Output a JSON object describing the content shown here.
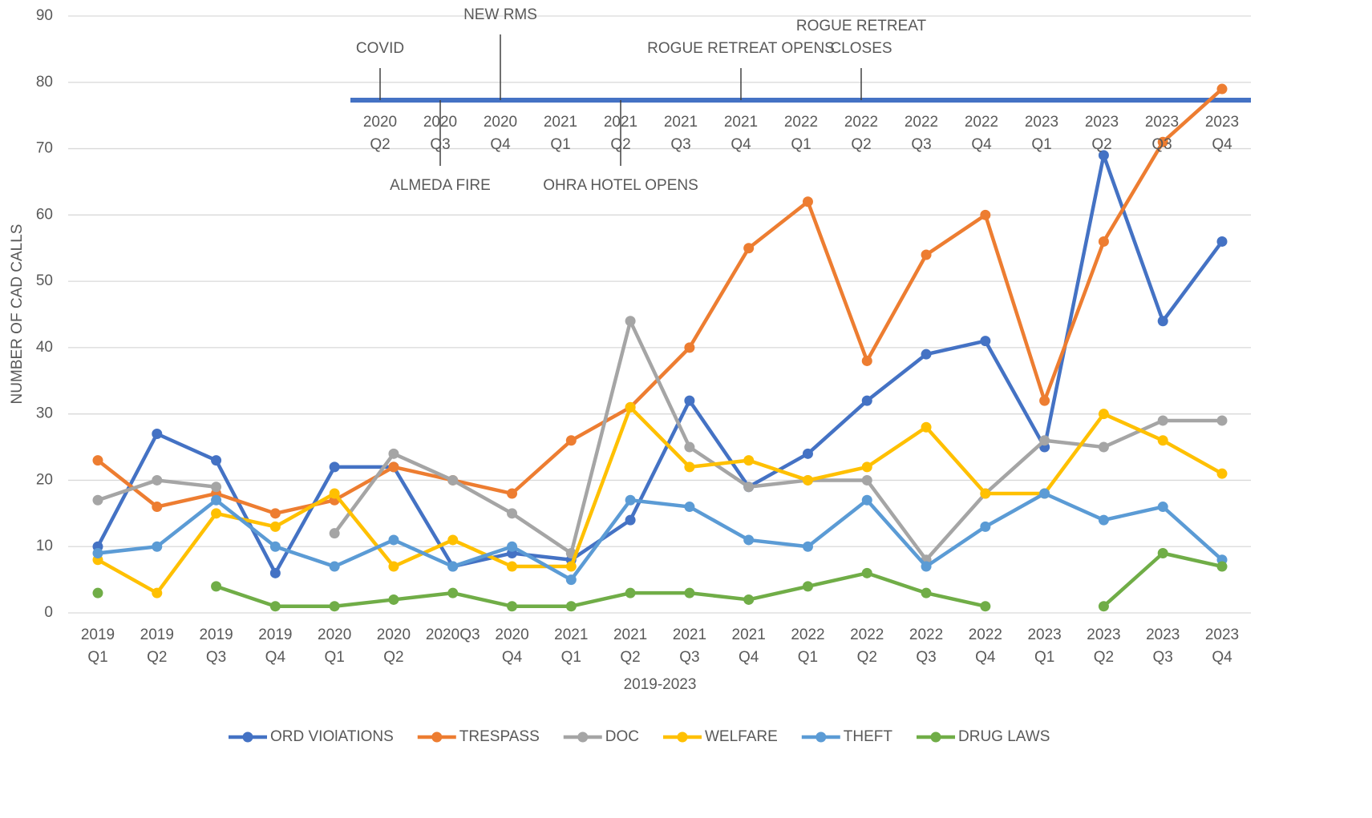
{
  "chart_data": {
    "type": "line",
    "x_label": "2019-2023",
    "y_label": "NUMBER OF CAD CALLS",
    "categories": [
      "2019\nQ1",
      "2019\nQ2",
      "2019\nQ3",
      "2019\nQ4",
      "2020\nQ1",
      "2020\nQ2",
      "2020Q3",
      "2020\nQ4",
      "2021\nQ1",
      "2021\nQ2",
      "2021\nQ3",
      "2021\nQ4",
      "2022\nQ1",
      "2022\nQ2",
      "2022\nQ3",
      "2022\nQ4",
      "2023\nQ1",
      "2023\nQ2",
      "2023\nQ3",
      "2023\nQ4"
    ],
    "ylim": [
      0,
      90
    ],
    "yticks": [
      0,
      10,
      20,
      30,
      40,
      50,
      60,
      70,
      80,
      90
    ],
    "grid": true,
    "legend": "bottom",
    "series": [
      {
        "name": "ORD VIOlATIONS",
        "color": "#4472c4",
        "values": [
          10,
          27,
          23,
          6,
          22,
          22,
          7,
          9,
          8,
          14,
          32,
          19,
          24,
          32,
          39,
          41,
          25,
          69,
          44,
          56
        ]
      },
      {
        "name": "TRESPASS",
        "color": "#ed7d31",
        "values": [
          23,
          16,
          18,
          15,
          17,
          22,
          20,
          18,
          26,
          31,
          40,
          55,
          62,
          38,
          54,
          60,
          32,
          56,
          71,
          79
        ]
      },
      {
        "name": "DOC",
        "color": "#a5a5a5",
        "values": [
          17,
          20,
          19,
          null,
          12,
          24,
          20,
          15,
          9,
          44,
          25,
          19,
          20,
          20,
          8,
          18,
          26,
          25,
          29,
          29
        ]
      },
      {
        "name": "WELFARE",
        "color": "#ffc000",
        "values": [
          8,
          3,
          15,
          13,
          18,
          7,
          11,
          7,
          7,
          31,
          22,
          23,
          20,
          22,
          28,
          18,
          18,
          30,
          26,
          21
        ]
      },
      {
        "name": "THEFT",
        "color": "#5b9bd5",
        "values": [
          9,
          10,
          17,
          10,
          7,
          11,
          7,
          10,
          5,
          17,
          16,
          11,
          10,
          17,
          7,
          13,
          18,
          14,
          16,
          8
        ]
      },
      {
        "name": "DRUG LAWS",
        "color": "#70ad47",
        "values": [
          3,
          null,
          4,
          1,
          1,
          2,
          3,
          1,
          1,
          3,
          3,
          2,
          4,
          6,
          3,
          1,
          null,
          1,
          9,
          7
        ]
      }
    ],
    "timeline": {
      "color": "#4472c4",
      "periods": [
        "2020\nQ2",
        "2020\nQ3",
        "2020\nQ4",
        "2021\nQ1",
        "2021\nQ2",
        "2021\nQ3",
        "2021\nQ4",
        "2022\nQ1",
        "2022\nQ2",
        "2022\nQ3",
        "2022\nQ4",
        "2023\nQ1",
        "2023\nQ2",
        "2023\nQ3",
        "2023\nQ4"
      ],
      "events_above": [
        {
          "label": "COVID",
          "period": "2020\nQ2"
        },
        {
          "label": "NEW RMS",
          "period": "2020\nQ4"
        },
        {
          "label": "ROGUE RETREAT OPENS",
          "period": "2021\nQ4"
        },
        {
          "label": "ROGUE RETREAT\nCLOSES",
          "period": "2022\nQ2"
        }
      ],
      "events_below": [
        {
          "label": "ALMEDA FIRE",
          "period": "2020\nQ3"
        },
        {
          "label": "OHRA HOTEL OPENS",
          "period": "2021\nQ2"
        }
      ]
    }
  }
}
